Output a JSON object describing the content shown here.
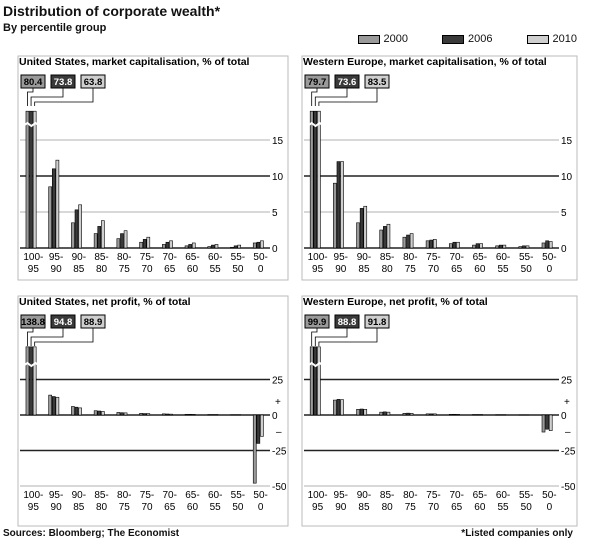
{
  "header": {
    "title": "Distribution of corporate wealth*",
    "subtitle": "By percentile group"
  },
  "legend": [
    {
      "label": "2000",
      "color": "#9a9a9a"
    },
    {
      "label": "2006",
      "color": "#3a3a3a"
    },
    {
      "label": "2010",
      "color": "#cfcfcf"
    }
  ],
  "footer": {
    "source": "Sources: Bloomberg; The Economist",
    "note": "*Listed companies only"
  },
  "chart_data": [
    {
      "type": "bar",
      "title": "United States, market capitalisation, % of total",
      "categories": [
        "100-95",
        "95-90",
        "90-85",
        "85-80",
        "80-75",
        "75-70",
        "70-65",
        "65-60",
        "60-55",
        "55-50",
        "50-0"
      ],
      "ylim": [
        0,
        20
      ],
      "yticks": [
        0,
        5,
        10,
        15
      ],
      "callouts": [
        "80.4",
        "73.8",
        "63.8"
      ],
      "series": [
        {
          "name": "2000",
          "values": [
            19.0,
            8.5,
            3.5,
            2.0,
            1.3,
            0.8,
            0.5,
            0.3,
            0.2,
            0.1,
            0.7
          ]
        },
        {
          "name": "2006",
          "values": [
            19.0,
            11.0,
            5.3,
            3.0,
            2.0,
            1.2,
            0.8,
            0.5,
            0.4,
            0.3,
            0.8
          ]
        },
        {
          "name": "2010",
          "values": [
            19.0,
            12.2,
            6.0,
            3.8,
            2.4,
            1.5,
            1.0,
            0.7,
            0.5,
            0.4,
            1.0
          ]
        }
      ]
    },
    {
      "type": "bar",
      "title": "Western Europe, market capitalisation, % of total",
      "categories": [
        "100-95",
        "95-90",
        "90-85",
        "85-80",
        "80-75",
        "75-70",
        "70-65",
        "65-60",
        "60-55",
        "55-50",
        "50-0"
      ],
      "ylim": [
        0,
        20
      ],
      "yticks": [
        0,
        5,
        10,
        15
      ],
      "callouts": [
        "79.7",
        "73.6",
        "83.5"
      ],
      "series": [
        {
          "name": "2000",
          "values": [
            19.0,
            9.0,
            3.5,
            2.5,
            1.5,
            1.0,
            0.6,
            0.4,
            0.3,
            0.2,
            0.7
          ]
        },
        {
          "name": "2006",
          "values": [
            19.0,
            12.0,
            5.5,
            3.0,
            1.8,
            1.1,
            0.8,
            0.6,
            0.4,
            0.3,
            1.0
          ]
        },
        {
          "name": "2010",
          "values": [
            19.0,
            12.0,
            5.8,
            3.3,
            2.0,
            1.2,
            0.8,
            0.6,
            0.4,
            0.3,
            0.9
          ]
        }
      ]
    },
    {
      "type": "bar",
      "title": "United States, net profit, % of total",
      "categories": [
        "100-95",
        "95-90",
        "90-85",
        "85-80",
        "80-75",
        "75-70",
        "70-65",
        "65-60",
        "60-55",
        "55-50",
        "50-0"
      ],
      "ylim": [
        -50,
        50
      ],
      "yticks": [
        -50,
        -25,
        0,
        25
      ],
      "plusminus": true,
      "callouts": [
        "138.8",
        "94.8",
        "88.9"
      ],
      "series": [
        {
          "name": "2000",
          "values": [
            48.0,
            14.0,
            6.0,
            3.0,
            1.8,
            1.2,
            0.8,
            0.5,
            0.3,
            0.2,
            -48.0
          ]
        },
        {
          "name": "2006",
          "values": [
            48.0,
            13.0,
            5.5,
            2.8,
            1.6,
            1.0,
            0.7,
            0.5,
            0.3,
            0.2,
            -20.0
          ]
        },
        {
          "name": "2010",
          "values": [
            48.0,
            12.5,
            5.0,
            2.5,
            1.5,
            1.0,
            0.6,
            0.4,
            0.3,
            0.2,
            -15.0
          ]
        }
      ]
    },
    {
      "type": "bar",
      "title": "Western Europe, net profit, % of total",
      "categories": [
        "100-95",
        "95-90",
        "90-85",
        "85-80",
        "80-75",
        "75-70",
        "70-65",
        "65-60",
        "60-55",
        "55-50",
        "50-0"
      ],
      "ylim": [
        -50,
        50
      ],
      "yticks": [
        -50,
        -25,
        0,
        25
      ],
      "plusminus": true,
      "callouts": [
        "99.9",
        "88.8",
        "91.8"
      ],
      "series": [
        {
          "name": "2000",
          "values": [
            48.0,
            10.5,
            4.0,
            2.0,
            1.2,
            0.8,
            0.5,
            0.3,
            0.2,
            0.1,
            -12.0
          ]
        },
        {
          "name": "2006",
          "values": [
            48.0,
            11.0,
            4.2,
            2.2,
            1.3,
            0.8,
            0.5,
            0.3,
            0.2,
            0.1,
            -10.0
          ]
        },
        {
          "name": "2010",
          "values": [
            48.0,
            10.8,
            4.0,
            2.0,
            1.2,
            0.8,
            0.5,
            0.3,
            0.2,
            0.1,
            -11.0
          ]
        }
      ]
    }
  ]
}
